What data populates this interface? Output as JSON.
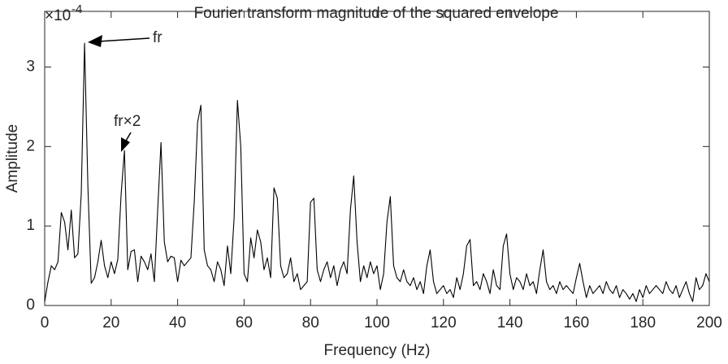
{
  "chart_data": {
    "type": "line",
    "title": "Fourier transform magnitude of the squared envelope",
    "xlabel": "Frequency (Hz)",
    "ylabel": "Amplitude",
    "y_multiplier": "×10",
    "y_exponent": "-4",
    "annotations": [
      "fr",
      "fr×2"
    ],
    "color": "#000000",
    "xlim": [
      0,
      200
    ],
    "xticks": [
      0,
      20,
      40,
      60,
      80,
      100,
      120,
      140,
      160,
      180,
      200
    ],
    "ylim": [
      0,
      3.7
    ],
    "yticks": [
      0,
      1,
      2,
      3
    ],
    "x": [
      0,
      1,
      2,
      3,
      4,
      5,
      6,
      7,
      8,
      9,
      10,
      11,
      12,
      13,
      14,
      15,
      16,
      17,
      18,
      19,
      20,
      21,
      22,
      23,
      24,
      25,
      26,
      27,
      28,
      29,
      30,
      31,
      32,
      33,
      34,
      35,
      36,
      37,
      38,
      39,
      40,
      41,
      42,
      43,
      44,
      45,
      46,
      47,
      48,
      49,
      50,
      51,
      52,
      53,
      54,
      55,
      56,
      57,
      58,
      59,
      60,
      61,
      62,
      63,
      64,
      65,
      66,
      67,
      68,
      69,
      70,
      71,
      72,
      73,
      74,
      75,
      76,
      77,
      78,
      79,
      80,
      81,
      82,
      83,
      84,
      85,
      86,
      87,
      88,
      89,
      90,
      91,
      92,
      93,
      94,
      95,
      96,
      97,
      98,
      99,
      100,
      101,
      102,
      103,
      104,
      105,
      106,
      107,
      108,
      109,
      110,
      111,
      112,
      113,
      114,
      115,
      116,
      117,
      118,
      119,
      120,
      121,
      122,
      123,
      124,
      125,
      126,
      127,
      128,
      129,
      130,
      131,
      132,
      133,
      134,
      135,
      136,
      137,
      138,
      139,
      140,
      141,
      142,
      143,
      144,
      145,
      146,
      147,
      148,
      149,
      150,
      151,
      152,
      153,
      154,
      155,
      156,
      157,
      158,
      159,
      160,
      161,
      162,
      163,
      164,
      165,
      166,
      167,
      168,
      169,
      170,
      171,
      172,
      173,
      174,
      175,
      176,
      177,
      178,
      179,
      180,
      181,
      182,
      183,
      184,
      185,
      186,
      187,
      188,
      189,
      190,
      191,
      192,
      193,
      194,
      195,
      196,
      197,
      198,
      199,
      200
    ],
    "values": [
      0.05,
      0.3,
      0.5,
      0.45,
      0.55,
      1.17,
      1.05,
      0.7,
      1.2,
      0.6,
      0.65,
      1.4,
      3.3,
      1.5,
      0.28,
      0.35,
      0.55,
      0.82,
      0.5,
      0.35,
      0.55,
      0.4,
      0.58,
      1.4,
      1.95,
      0.45,
      0.68,
      0.7,
      0.3,
      0.62,
      0.55,
      0.45,
      0.65,
      0.3,
      1.2,
      2.05,
      0.8,
      0.55,
      0.62,
      0.6,
      0.3,
      0.57,
      0.5,
      0.55,
      0.6,
      1.3,
      2.3,
      2.52,
      0.7,
      0.5,
      0.45,
      0.3,
      0.55,
      0.45,
      0.25,
      0.75,
      0.4,
      1.1,
      2.58,
      2.0,
      0.4,
      0.3,
      0.85,
      0.6,
      0.95,
      0.8,
      0.45,
      0.6,
      0.35,
      1.48,
      1.35,
      0.5,
      0.35,
      0.4,
      0.6,
      0.3,
      0.4,
      0.2,
      0.25,
      0.3,
      1.3,
      1.35,
      0.45,
      0.3,
      0.45,
      0.55,
      0.35,
      0.5,
      0.25,
      0.45,
      0.55,
      0.4,
      1.2,
      1.63,
      0.8,
      0.3,
      0.5,
      0.35,
      0.55,
      0.4,
      0.5,
      0.2,
      0.4,
      1.05,
      1.37,
      0.5,
      0.35,
      0.3,
      0.45,
      0.3,
      0.25,
      0.35,
      0.2,
      0.3,
      0.15,
      0.5,
      0.7,
      0.3,
      0.15,
      0.2,
      0.25,
      0.15,
      0.2,
      0.1,
      0.35,
      0.2,
      0.4,
      0.75,
      0.83,
      0.25,
      0.3,
      0.2,
      0.4,
      0.3,
      0.15,
      0.45,
      0.25,
      0.2,
      0.75,
      0.9,
      0.4,
      0.2,
      0.35,
      0.3,
      0.2,
      0.4,
      0.25,
      0.3,
      0.15,
      0.45,
      0.7,
      0.3,
      0.2,
      0.25,
      0.15,
      0.3,
      0.2,
      0.25,
      0.2,
      0.15,
      0.35,
      0.53,
      0.3,
      0.1,
      0.25,
      0.15,
      0.2,
      0.25,
      0.15,
      0.3,
      0.2,
      0.15,
      0.25,
      0.1,
      0.2,
      0.15,
      0.08,
      0.15,
      0.05,
      0.2,
      0.1,
      0.25,
      0.15,
      0.2,
      0.25,
      0.2,
      0.15,
      0.3,
      0.2,
      0.15,
      0.25,
      0.1,
      0.2,
      0.3,
      0.15,
      0.05,
      0.35,
      0.2,
      0.25,
      0.4,
      0.3
    ]
  }
}
